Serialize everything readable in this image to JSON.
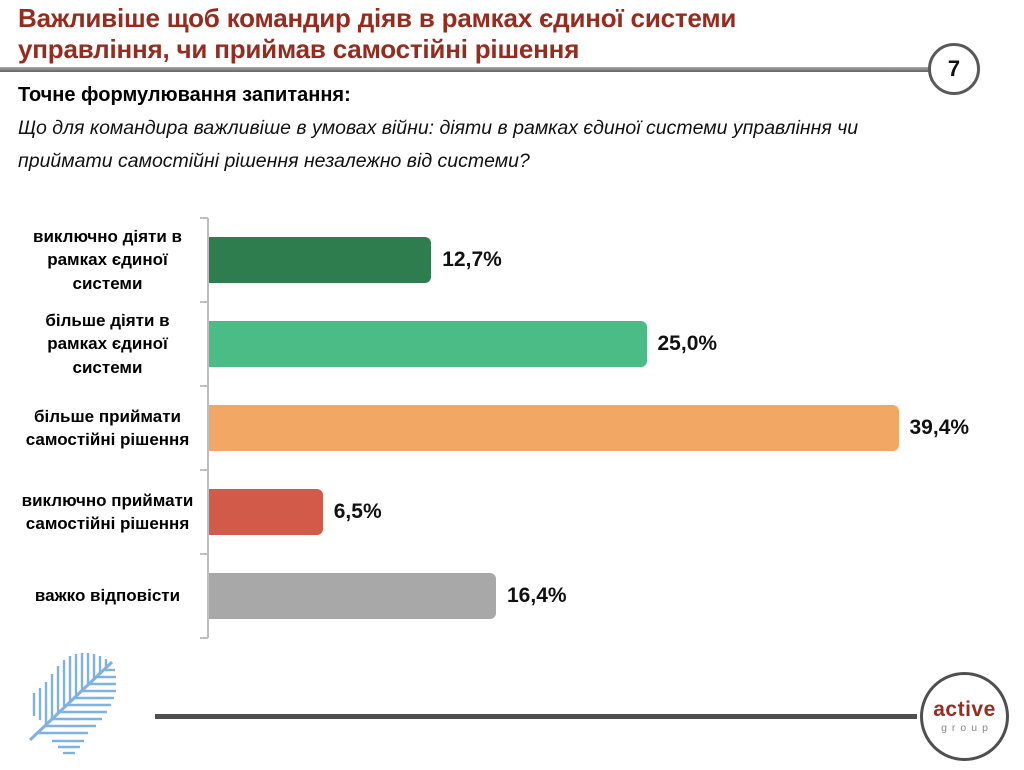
{
  "page": {
    "number": "7"
  },
  "header": {
    "title_lines": [
      "Важливіше щоб командир діяв в рамках єдиної системи",
      "управління, чи приймав самостійні рішення"
    ],
    "question_label": "Точне формулювання запитання:",
    "question_lines": [
      "Що для командира важливіше в умовах війни: діяти в рамках єдиної системи управління чи",
      "приймати самостійні рішення незалежно від системи?"
    ]
  },
  "chart_data": {
    "type": "bar",
    "orientation": "horizontal",
    "categories": [
      "виключно діяти в рамках єдиної системи",
      "більше діяти в рамках єдиної системи",
      "більше приймати самостійні рішення",
      "виключно приймати самостійні рішення",
      "важко відповісти"
    ],
    "values": [
      12.7,
      25.0,
      39.4,
      6.5,
      16.4
    ],
    "value_labels": [
      "12,7%",
      "25,0%",
      "39,4%",
      "6,5%",
      "16,4%"
    ],
    "bar_colors": [
      "#2E7D4E",
      "#4CBC86",
      "#F2A765",
      "#D15A49",
      "#A8A8A8"
    ],
    "unit": "%",
    "xlim": [
      0,
      40
    ],
    "grid": false,
    "legend": false,
    "title": ""
  },
  "footer": {
    "brand_primary": "active",
    "brand_secondary": "group"
  },
  "colors": {
    "title_red": "#962B1E",
    "axis_gray": "#BFBFBF",
    "divider_gray": "#4F4F4F",
    "leaf_blue": "#7FB2E0",
    "brand_red": "#9B2B20"
  }
}
